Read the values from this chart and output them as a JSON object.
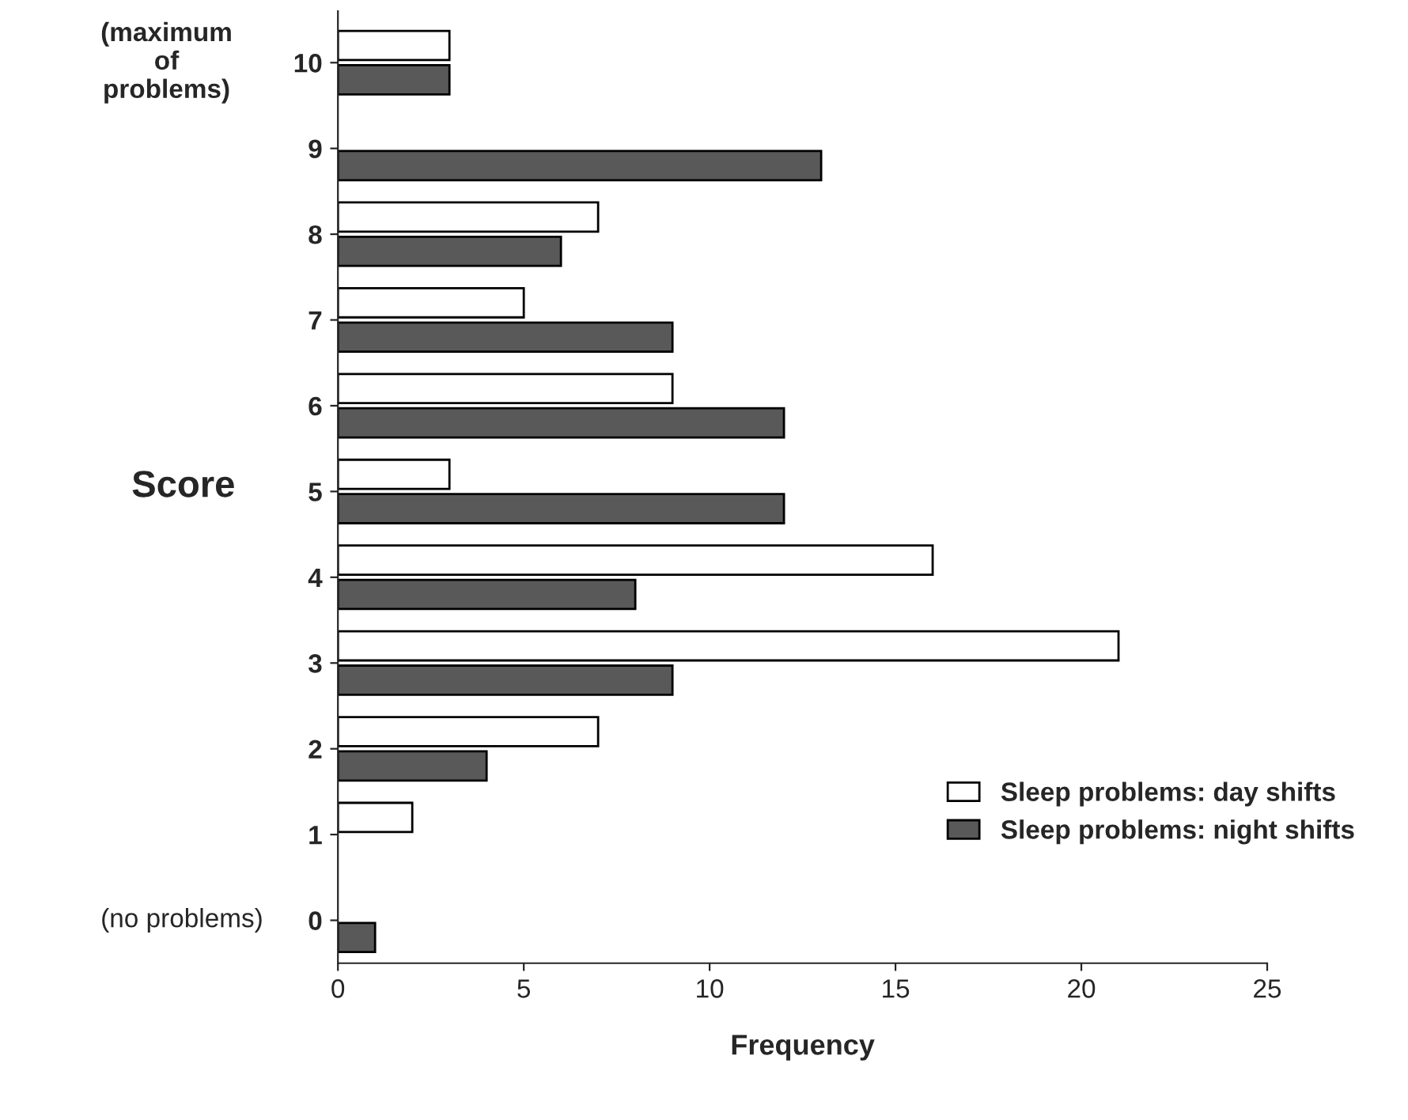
{
  "chart_data": {
    "type": "bar",
    "orientation": "horizontal",
    "xlabel": "Frequency",
    "ylabel": "Score",
    "categories": [
      "10",
      "9",
      "8",
      "7",
      "6",
      "5",
      "4",
      "3",
      "2",
      "1",
      "0"
    ],
    "series": [
      {
        "name": "Sleep problems: day shifts",
        "color": "#ffffff",
        "values": [
          3,
          null,
          7,
          5,
          9,
          3,
          16,
          21,
          7,
          2,
          null
        ]
      },
      {
        "name": "Sleep problems: night shifts",
        "color": "#595959",
        "values": [
          3,
          13,
          6,
          9,
          12,
          12,
          8,
          9,
          4,
          null,
          1
        ]
      }
    ],
    "xlim": [
      0,
      25
    ],
    "xticks": [
      0,
      5,
      10,
      15,
      20,
      25
    ],
    "grid": false,
    "legend": "bottom right",
    "annotations": [
      "(maximum\nof\nproblems)",
      "(no problems)"
    ]
  }
}
